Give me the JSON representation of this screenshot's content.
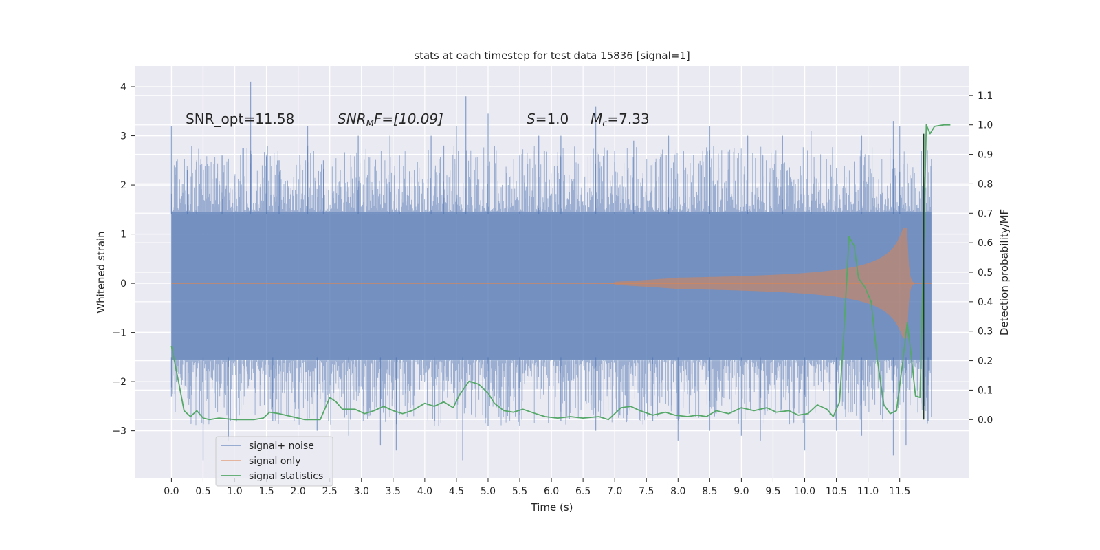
{
  "chart_data": {
    "type": "line",
    "title": "stats at each timestep for test data 15836 [signal=1]",
    "xlabel": "Time (s)",
    "ylabel_left": "Whitened strain",
    "ylabel_right": "Detection probability/MF",
    "x_ticks": [
      "0.0",
      "0.5",
      "1.0",
      "1.5",
      "2.0",
      "2.5",
      "3.0",
      "3.5",
      "4.0",
      "4.5",
      "5.0",
      "5.5",
      "6.0",
      "6.5",
      "7.0",
      "7.5",
      "8.0",
      "8.5",
      "9.0",
      "9.5",
      "10.0",
      "10.5",
      "11.0",
      "11.5"
    ],
    "y_left_ticks": [
      "4",
      "3",
      "2",
      "1",
      "0",
      "−1",
      "−2",
      "−3"
    ],
    "y_right_ticks": [
      "1.1",
      "1.0",
      "0.9",
      "0.8",
      "0.7",
      "0.6",
      "0.5",
      "0.4",
      "0.3",
      "0.2",
      "0.1",
      "0.0"
    ],
    "xlim": [
      -0.58,
      12.6
    ],
    "ylim_left": [
      -3.97,
      4.42
    ],
    "ylim_right": [
      -0.2,
      1.2
    ],
    "grid": true,
    "legend_position": "lower-left",
    "annotations": [
      {
        "prefix": "SNR_opt=11.58",
        "sub": "",
        "suffix": ""
      },
      {
        "prefix": "SNR",
        "sub": "M",
        "suffix": "F=[10.09]"
      },
      {
        "prefix": "S",
        "sub": "",
        "suffix": "=1.0"
      },
      {
        "prefix": "M",
        "sub": "c",
        "suffix": "=7.33"
      }
    ],
    "series": [
      {
        "name": "signal+ noise",
        "color": "#4c72b0",
        "axis": "left",
        "duration": 12.0,
        "band": [
          -1.55,
          1.45
        ],
        "peaks": [
          [
            0.0,
            3.2
          ],
          [
            0.25,
            2.3
          ],
          [
            0.4,
            2.5
          ],
          [
            0.8,
            2.6
          ],
          [
            1.25,
            4.1
          ],
          [
            1.5,
            2.6
          ],
          [
            1.7,
            2.5
          ],
          [
            2.15,
            3.2
          ],
          [
            2.4,
            2.5
          ],
          [
            2.95,
            3.0
          ],
          [
            3.45,
            3.0
          ],
          [
            3.6,
            2.6
          ],
          [
            4.1,
            3.0
          ],
          [
            4.3,
            2.8
          ],
          [
            4.5,
            3.2
          ],
          [
            4.65,
            3.8
          ],
          [
            5.0,
            3.45
          ],
          [
            5.5,
            2.6
          ],
          [
            5.8,
            3.0
          ],
          [
            6.15,
            3.0
          ],
          [
            6.7,
            3.6
          ],
          [
            7.0,
            2.7
          ],
          [
            7.3,
            2.9
          ],
          [
            7.85,
            3.0
          ],
          [
            8.5,
            3.2
          ],
          [
            9.1,
            3.0
          ],
          [
            9.65,
            3.0
          ],
          [
            10.1,
            3.1
          ],
          [
            10.9,
            3.0
          ],
          [
            11.4,
            3.3
          ],
          [
            11.5,
            3.2
          ]
        ],
        "troughs": [
          [
            0.0,
            -2.3
          ],
          [
            0.5,
            -3.6
          ],
          [
            0.9,
            -3.2
          ],
          [
            1.6,
            -2.8
          ],
          [
            2.3,
            -3.0
          ],
          [
            2.8,
            -3.1
          ],
          [
            3.3,
            -3.3
          ],
          [
            3.55,
            -3.4
          ],
          [
            4.15,
            -2.9
          ],
          [
            4.6,
            -3.6
          ],
          [
            5.0,
            -2.9
          ],
          [
            5.5,
            -2.9
          ],
          [
            6.15,
            -2.8
          ],
          [
            6.7,
            -3.0
          ],
          [
            7.6,
            -2.8
          ],
          [
            8.0,
            -3.2
          ],
          [
            8.5,
            -3.0
          ],
          [
            9.0,
            -3.1
          ],
          [
            9.3,
            -3.2
          ],
          [
            10.0,
            -3.4
          ],
          [
            10.5,
            -3.0
          ],
          [
            10.9,
            -3.1
          ],
          [
            11.4,
            -3.5
          ],
          [
            11.6,
            -3.3
          ],
          [
            11.95,
            -2.8
          ]
        ]
      },
      {
        "name": "signal only",
        "color": "#dd8452",
        "axis": "left",
        "chirp_start": 7.0,
        "merger_time": 11.62,
        "peak_amplitude": 1.12,
        "ringdown_end": 11.72
      },
      {
        "name": "signal statistics",
        "color": "#55a868",
        "axis": "right",
        "points": [
          [
            0.0,
            0.25
          ],
          [
            0.12,
            0.12
          ],
          [
            0.2,
            0.03
          ],
          [
            0.3,
            0.01
          ],
          [
            0.4,
            0.03
          ],
          [
            0.5,
            0.005
          ],
          [
            0.6,
            0.0
          ],
          [
            0.75,
            0.005
          ],
          [
            1.0,
            0.0
          ],
          [
            1.3,
            0.0
          ],
          [
            1.45,
            0.005
          ],
          [
            1.55,
            0.025
          ],
          [
            1.7,
            0.02
          ],
          [
            1.9,
            0.01
          ],
          [
            2.1,
            0.0
          ],
          [
            2.35,
            0.0
          ],
          [
            2.5,
            0.075
          ],
          [
            2.6,
            0.06
          ],
          [
            2.7,
            0.035
          ],
          [
            2.9,
            0.035
          ],
          [
            3.05,
            0.02
          ],
          [
            3.2,
            0.03
          ],
          [
            3.35,
            0.045
          ],
          [
            3.5,
            0.03
          ],
          [
            3.65,
            0.02
          ],
          [
            3.8,
            0.03
          ],
          [
            4.0,
            0.055
          ],
          [
            4.15,
            0.045
          ],
          [
            4.3,
            0.06
          ],
          [
            4.45,
            0.04
          ],
          [
            4.55,
            0.085
          ],
          [
            4.7,
            0.13
          ],
          [
            4.85,
            0.12
          ],
          [
            5.0,
            0.09
          ],
          [
            5.1,
            0.055
          ],
          [
            5.25,
            0.03
          ],
          [
            5.4,
            0.025
          ],
          [
            5.55,
            0.035
          ],
          [
            5.75,
            0.02
          ],
          [
            5.9,
            0.01
          ],
          [
            6.1,
            0.005
          ],
          [
            6.3,
            0.01
          ],
          [
            6.5,
            0.005
          ],
          [
            6.75,
            0.01
          ],
          [
            6.9,
            0.0
          ],
          [
            7.1,
            0.04
          ],
          [
            7.25,
            0.045
          ],
          [
            7.4,
            0.03
          ],
          [
            7.6,
            0.015
          ],
          [
            7.8,
            0.025
          ],
          [
            7.95,
            0.015
          ],
          [
            8.15,
            0.01
          ],
          [
            8.3,
            0.015
          ],
          [
            8.45,
            0.01
          ],
          [
            8.6,
            0.03
          ],
          [
            8.8,
            0.02
          ],
          [
            9.0,
            0.04
          ],
          [
            9.2,
            0.03
          ],
          [
            9.4,
            0.04
          ],
          [
            9.55,
            0.025
          ],
          [
            9.75,
            0.03
          ],
          [
            9.9,
            0.015
          ],
          [
            10.05,
            0.02
          ],
          [
            10.2,
            0.05
          ],
          [
            10.35,
            0.035
          ],
          [
            10.45,
            0.01
          ],
          [
            10.55,
            0.06
          ],
          [
            10.62,
            0.3
          ],
          [
            10.7,
            0.62
          ],
          [
            10.78,
            0.59
          ],
          [
            10.85,
            0.48
          ],
          [
            10.95,
            0.45
          ],
          [
            11.05,
            0.4
          ],
          [
            11.15,
            0.2
          ],
          [
            11.25,
            0.05
          ],
          [
            11.35,
            0.02
          ],
          [
            11.45,
            0.03
          ],
          [
            11.55,
            0.2
          ],
          [
            11.62,
            0.33
          ],
          [
            11.68,
            0.22
          ],
          [
            11.75,
            0.08
          ],
          [
            11.82,
            0.075
          ],
          [
            11.88,
            0.6
          ],
          [
            11.92,
            1.0
          ],
          [
            11.98,
            0.97
          ],
          [
            12.05,
            0.995
          ],
          [
            12.2,
            1.0
          ],
          [
            12.3,
            1.0
          ]
        ]
      }
    ]
  }
}
